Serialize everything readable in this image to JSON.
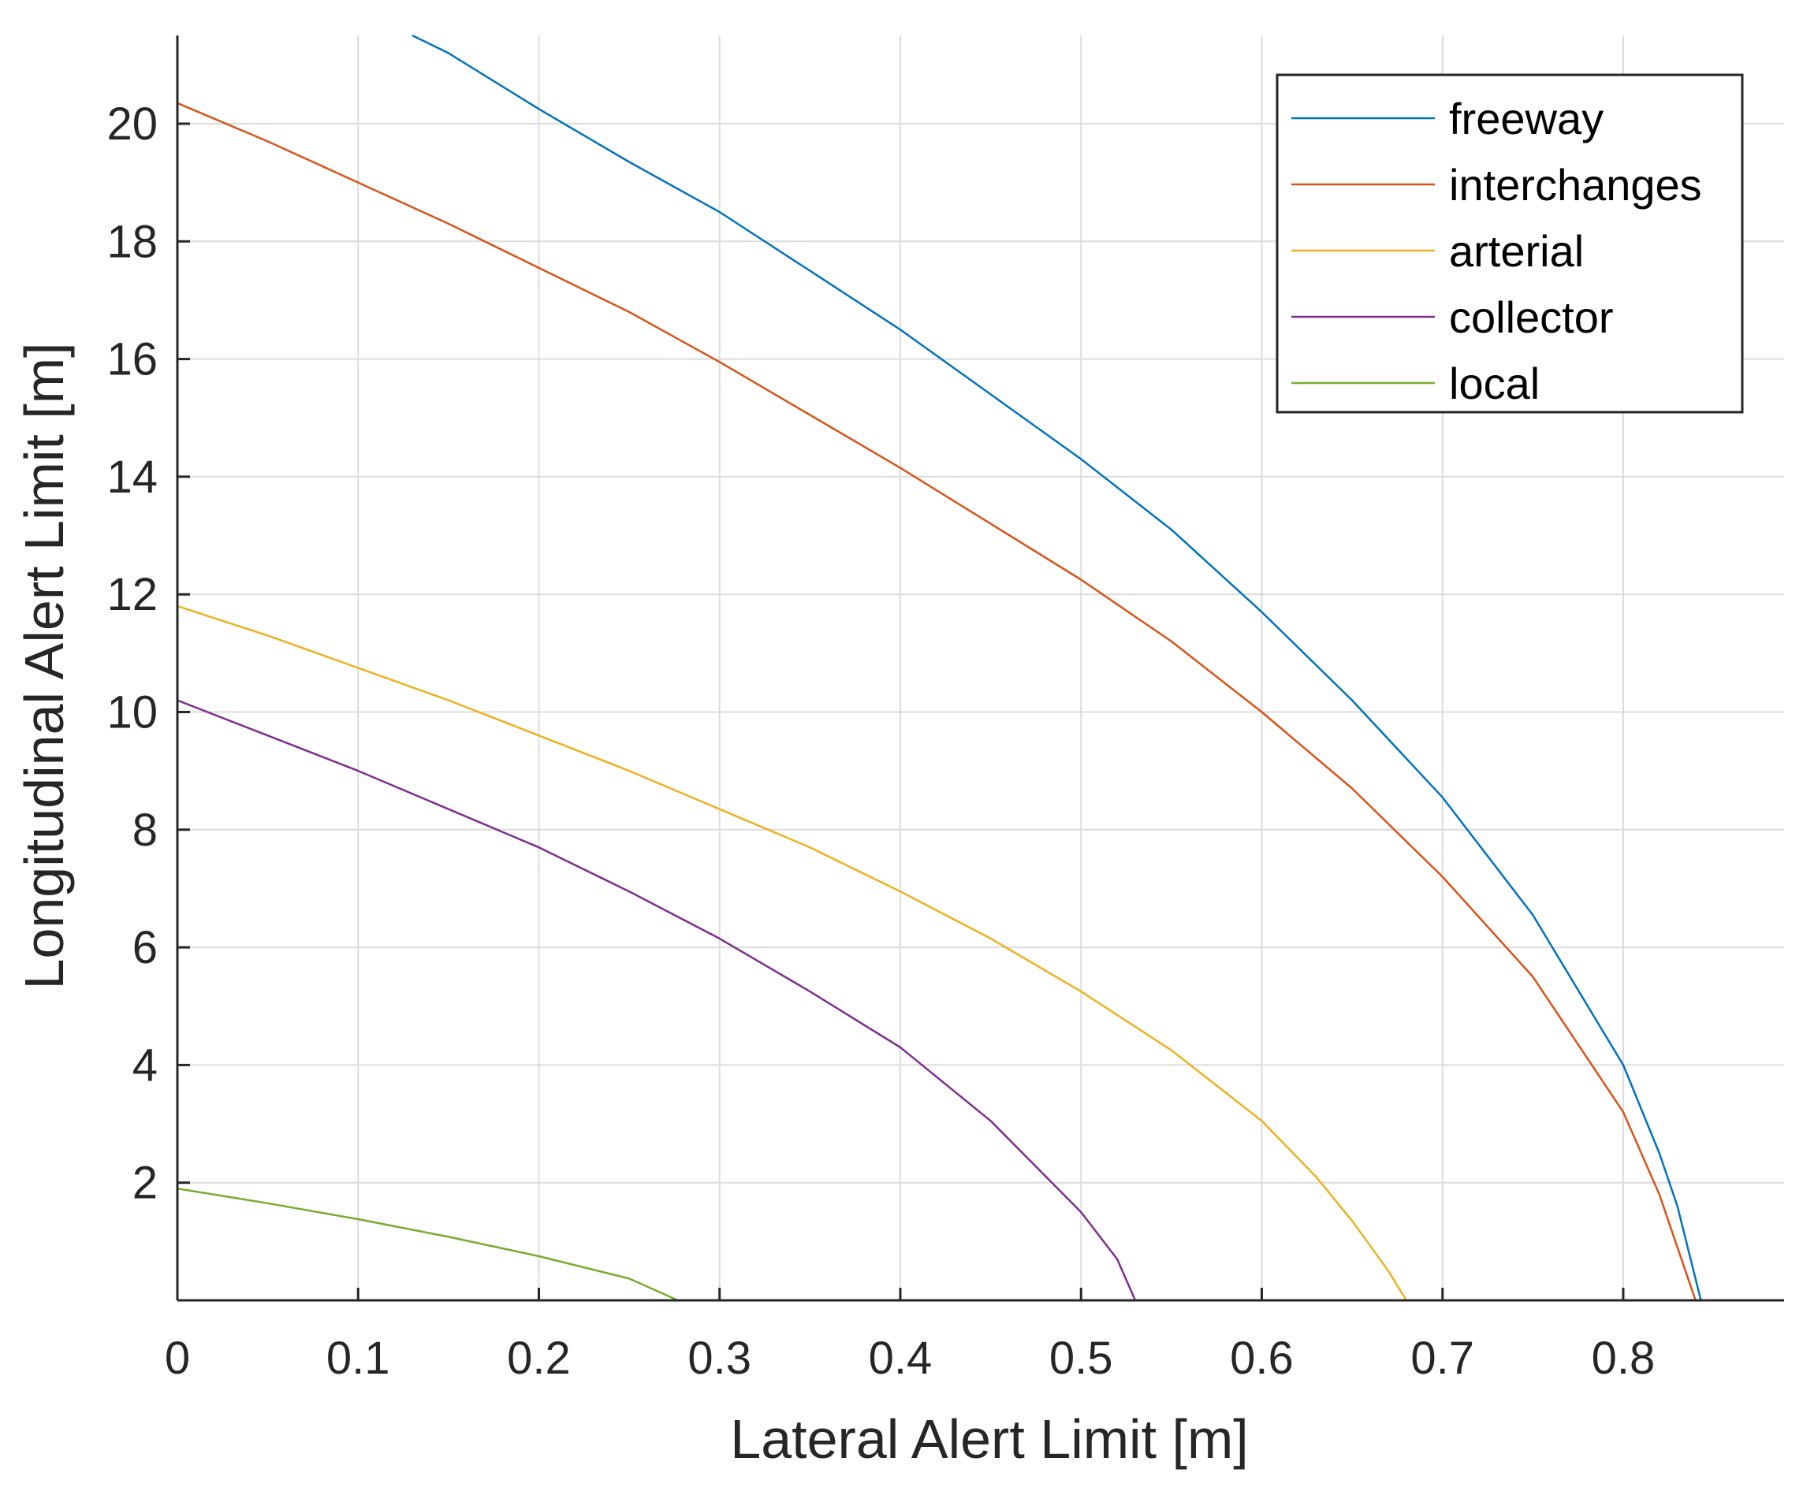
{
  "chart_data": {
    "type": "line",
    "title": "",
    "xlabel": "Lateral Alert Limit [m]",
    "ylabel": "Longitudinal Alert Limit [m]",
    "xlim": [
      0,
      0.889
    ],
    "ylim": [
      0,
      21.5
    ],
    "x_ticks": [
      0,
      0.1,
      0.2,
      0.3,
      0.4,
      0.5,
      0.6,
      0.7,
      0.8
    ],
    "x_tick_labels": [
      "0",
      "0.1",
      "0.2",
      "0.3",
      "0.4",
      "0.5",
      "0.6",
      "0.7",
      "0.8"
    ],
    "y_ticks": [
      2,
      4,
      6,
      8,
      10,
      12,
      14,
      16,
      18,
      20
    ],
    "y_tick_labels": [
      "2",
      "4",
      "6",
      "8",
      "10",
      "12",
      "14",
      "16",
      "18",
      "20"
    ],
    "grid": true,
    "legend_position": "top-right",
    "series": [
      {
        "name": "freeway",
        "color": "#0072BD",
        "x": [
          0.13,
          0.15,
          0.2,
          0.25,
          0.3,
          0.35,
          0.4,
          0.45,
          0.5,
          0.55,
          0.6,
          0.65,
          0.7,
          0.75,
          0.8,
          0.82,
          0.83,
          0.843
        ],
        "y": [
          21.5,
          21.2,
          20.25,
          19.35,
          18.5,
          17.5,
          16.5,
          15.4,
          14.3,
          13.1,
          11.7,
          10.2,
          8.55,
          6.55,
          4.0,
          2.5,
          1.6,
          0.0
        ]
      },
      {
        "name": "interchanges",
        "color": "#D95319",
        "x": [
          0,
          0.05,
          0.1,
          0.15,
          0.2,
          0.25,
          0.3,
          0.35,
          0.4,
          0.45,
          0.5,
          0.55,
          0.6,
          0.65,
          0.7,
          0.75,
          0.8,
          0.82,
          0.83,
          0.84
        ],
        "y": [
          20.35,
          19.7,
          19.0,
          18.3,
          17.55,
          16.8,
          15.95,
          15.05,
          14.15,
          13.2,
          12.25,
          11.2,
          10.0,
          8.7,
          7.2,
          5.5,
          3.2,
          1.8,
          0.9,
          0.0
        ]
      },
      {
        "name": "arterial",
        "color": "#EDB120",
        "x": [
          0,
          0.05,
          0.1,
          0.15,
          0.2,
          0.25,
          0.3,
          0.35,
          0.4,
          0.45,
          0.5,
          0.55,
          0.6,
          0.63,
          0.65,
          0.67,
          0.68
        ],
        "y": [
          11.8,
          11.3,
          10.75,
          10.2,
          9.6,
          9.0,
          8.35,
          7.7,
          6.95,
          6.15,
          5.25,
          4.25,
          3.05,
          2.1,
          1.35,
          0.5,
          0.0
        ]
      },
      {
        "name": "collector",
        "color": "#7E2F8E",
        "x": [
          0,
          0.05,
          0.1,
          0.15,
          0.2,
          0.25,
          0.3,
          0.35,
          0.4,
          0.45,
          0.5,
          0.52,
          0.53
        ],
        "y": [
          10.2,
          9.6,
          9.0,
          8.35,
          7.7,
          6.95,
          6.15,
          5.25,
          4.3,
          3.05,
          1.5,
          0.7,
          0.0
        ]
      },
      {
        "name": "local",
        "color": "#77AC30",
        "x": [
          0,
          0.05,
          0.1,
          0.15,
          0.2,
          0.25,
          0.277
        ],
        "y": [
          1.9,
          1.65,
          1.38,
          1.08,
          0.75,
          0.37,
          0.0
        ]
      }
    ]
  }
}
